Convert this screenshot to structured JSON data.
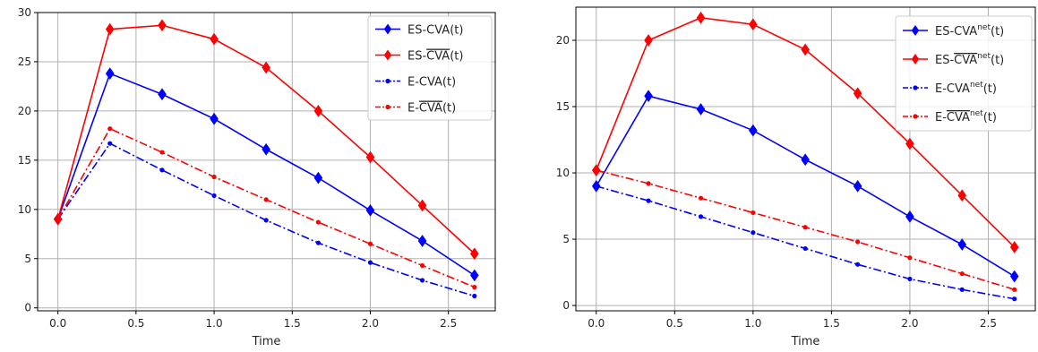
{
  "colors": {
    "blue": "#0000ff",
    "red": "#ff0000",
    "grid": "#b0b0b0"
  },
  "chart_data": [
    {
      "type": "line",
      "xlabel": "Time",
      "ylabel": "",
      "xlim": [
        -0.13,
        2.8
      ],
      "ylim": [
        -0.3,
        30
      ],
      "xticks": [
        0.0,
        0.5,
        1.0,
        1.5,
        2.0,
        2.5
      ],
      "xtick_labels": [
        "0.0",
        "0.5",
        "1.0",
        "1.5",
        "2.0",
        "2.5"
      ],
      "yticks": [
        0,
        5,
        10,
        15,
        20,
        25,
        30
      ],
      "ytick_labels": [
        "0",
        "5",
        "10",
        "15",
        "20",
        "25",
        "30"
      ],
      "grid": true,
      "legend_position": "top-right",
      "x": [
        0.0,
        0.333,
        0.667,
        1.0,
        1.333,
        1.667,
        2.0,
        2.333,
        2.667
      ],
      "series": [
        {
          "name": "ES-CVA(t)",
          "legend": {
            "pre": "ES-CVA(t)",
            "over": "",
            "sup": "",
            "post": ""
          },
          "color": "blue",
          "style": "solid",
          "marker": "diamond",
          "values": [
            9.0,
            23.8,
            21.7,
            19.2,
            16.1,
            13.2,
            9.9,
            6.8,
            3.3
          ]
        },
        {
          "name": "ES-CVA̅(t)",
          "legend": {
            "pre": "ES-",
            "over": "CVA",
            "sup": "",
            "post": "(t)"
          },
          "color": "red",
          "style": "solid",
          "marker": "diamond",
          "values": [
            9.0,
            28.3,
            28.7,
            27.3,
            24.4,
            20.0,
            15.3,
            10.4,
            5.5
          ]
        },
        {
          "name": "E-CVA(t)",
          "legend": {
            "pre": "E-CVA(t)",
            "over": "",
            "sup": "",
            "post": ""
          },
          "color": "blue",
          "style": "dashdot",
          "marker": "dot",
          "values": [
            9.0,
            16.7,
            14.0,
            11.4,
            8.9,
            6.6,
            4.6,
            2.8,
            1.2
          ]
        },
        {
          "name": "E-CVA̅(t)",
          "legend": {
            "pre": "E-",
            "over": "CVA",
            "sup": "",
            "post": "(t)"
          },
          "color": "red",
          "style": "dashdot",
          "marker": "dot",
          "values": [
            9.0,
            18.2,
            15.8,
            13.3,
            11.0,
            8.7,
            6.5,
            4.3,
            2.1
          ]
        }
      ]
    },
    {
      "type": "line",
      "xlabel": "Time",
      "ylabel": "",
      "xlim": [
        -0.13,
        2.8
      ],
      "ylim": [
        -0.4,
        22.5
      ],
      "xticks": [
        0.0,
        0.5,
        1.0,
        1.5,
        2.0,
        2.5
      ],
      "xtick_labels": [
        "0.0",
        "0.5",
        "1.0",
        "1.5",
        "2.0",
        "2.5"
      ],
      "yticks": [
        0,
        5,
        10,
        15,
        20
      ],
      "ytick_labels": [
        "0",
        "5",
        "10",
        "15",
        "20"
      ],
      "grid": true,
      "legend_position": "top-right",
      "x": [
        0.0,
        0.333,
        0.667,
        1.0,
        1.333,
        1.667,
        2.0,
        2.333,
        2.667
      ],
      "series": [
        {
          "name": "ES-CVA^net(t)",
          "legend": {
            "pre": "ES-",
            "over": "",
            "plain": "CVA",
            "sup": "net",
            "post": "(t)"
          },
          "color": "blue",
          "style": "solid",
          "marker": "diamond",
          "values": [
            9.0,
            15.8,
            14.8,
            13.2,
            11.0,
            9.0,
            6.7,
            4.6,
            2.2
          ]
        },
        {
          "name": "ES-CVA̅^net(t)",
          "legend": {
            "pre": "ES-",
            "over": "CVA",
            "plain": "",
            "sup": "net",
            "post": "(t)"
          },
          "color": "red",
          "style": "solid",
          "marker": "diamond",
          "values": [
            10.2,
            20.0,
            21.7,
            21.2,
            19.3,
            16.0,
            12.2,
            8.3,
            4.4
          ]
        },
        {
          "name": "E-CVA^net(t)",
          "legend": {
            "pre": "E-",
            "over": "",
            "plain": "CVA",
            "sup": "net",
            "post": "(t)"
          },
          "color": "blue",
          "style": "dashdot",
          "marker": "dot",
          "values": [
            9.0,
            7.9,
            6.7,
            5.5,
            4.3,
            3.1,
            2.0,
            1.2,
            0.5
          ]
        },
        {
          "name": "E-CVA̅^net(t)",
          "legend": {
            "pre": "E-",
            "over": "CVA",
            "plain": "",
            "sup": "net",
            "post": "(t)"
          },
          "color": "red",
          "style": "dashdot",
          "marker": "dot",
          "values": [
            10.2,
            9.2,
            8.1,
            7.0,
            5.9,
            4.8,
            3.6,
            2.4,
            1.2
          ]
        }
      ]
    }
  ]
}
